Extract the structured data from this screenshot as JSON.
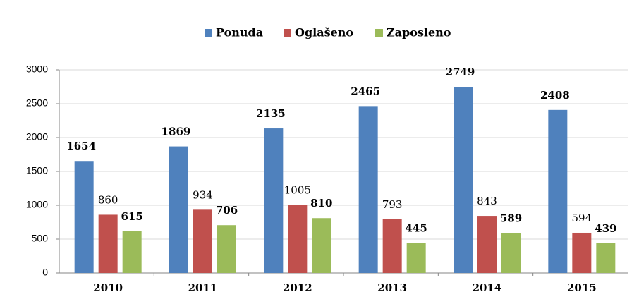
{
  "chart_data": {
    "type": "bar",
    "categories": [
      "2010",
      "2011",
      "2012",
      "2013",
      "2014",
      "2015"
    ],
    "series": [
      {
        "name": "Ponuda",
        "color": "#4f81bd",
        "values": [
          1654,
          1869,
          2135,
          2465,
          2749,
          2408
        ]
      },
      {
        "name": "Oglašeno",
        "color": "#c0504d",
        "values": [
          860,
          934,
          1005,
          793,
          843,
          594
        ]
      },
      {
        "name": "Zaposleno",
        "color": "#9bbb59",
        "values": [
          615,
          706,
          810,
          445,
          589,
          439
        ]
      }
    ],
    "ylim": [
      0,
      3000
    ],
    "yticks": [
      0,
      500,
      1000,
      1500,
      2000,
      2500,
      3000
    ],
    "grid": true,
    "legend": "top"
  }
}
